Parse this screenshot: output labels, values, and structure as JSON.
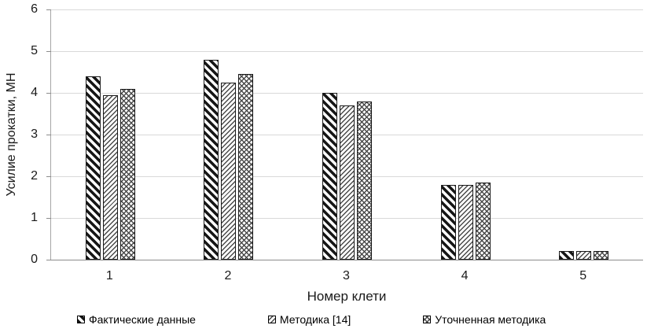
{
  "chart_data": {
    "type": "bar",
    "categories": [
      "1",
      "2",
      "3",
      "4",
      "5"
    ],
    "series": [
      {
        "name": "Фактические данные",
        "values": [
          4.4,
          4.8,
          4.0,
          1.8,
          0.2
        ],
        "pattern": "heavy-diagonal"
      },
      {
        "name": "Методика [14]",
        "values": [
          3.95,
          4.25,
          3.7,
          1.8,
          0.2
        ],
        "pattern": "thin-diagonal"
      },
      {
        "name": "Уточненная методика",
        "values": [
          4.1,
          4.45,
          3.8,
          1.85,
          0.2
        ],
        "pattern": "crosshatch"
      }
    ],
    "title": "",
    "xlabel": "Номер клети",
    "ylabel": "Усилие прокатки, МН",
    "ylim": [
      0,
      6
    ],
    "ytick_step": 1,
    "ytick_labels": [
      "0",
      "1",
      "2",
      "3",
      "4",
      "5",
      "6"
    ],
    "grid": true,
    "legend_position": "bottom"
  },
  "colors": {
    "bar_fill": "#ffffff",
    "bar_stroke": "#1a1a1a",
    "hatch": "#4a4a4a",
    "gridline": "#d9d9d9",
    "axis_line": "#8c8c8c",
    "text": "#1a1a1a",
    "background": "#ffffff"
  }
}
